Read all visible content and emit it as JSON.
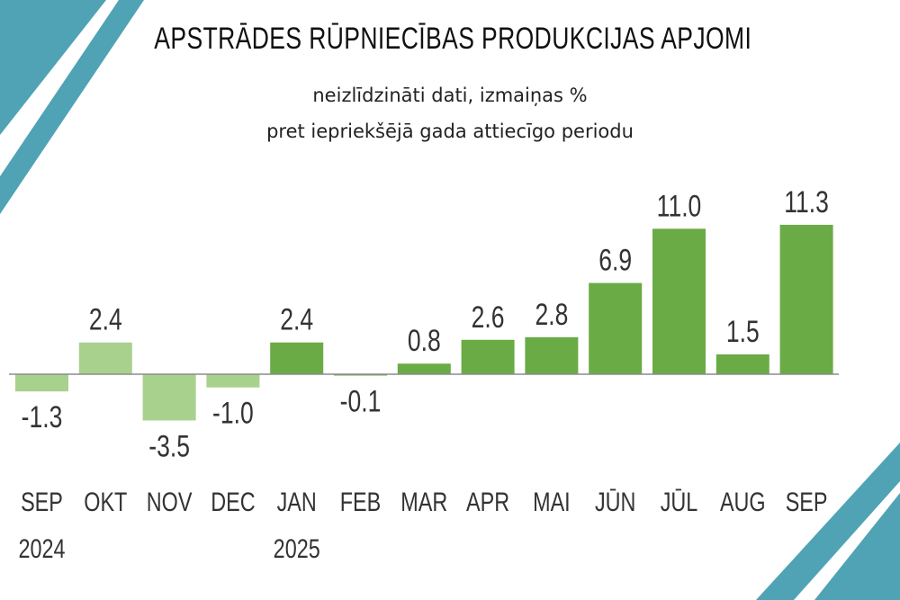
{
  "title": "APSTRĀDES RŪPNIECĪBAS PRODUKCIJAS APJOMI",
  "subtitle_line1": "neizlīdzināti dati, izmaiņas %",
  "subtitle_line2": "pret iepriekšējā gada attiecīgo periodu",
  "colors": {
    "bar_2024": "#a9d18e",
    "bar_2025": "#6aab46",
    "axis": "#8c8c8c",
    "accent": "#4fa3b5",
    "text": "#333333"
  },
  "chart_data": {
    "type": "bar",
    "title": "APSTRĀDES RŪPNIECĪBAS PRODUKCIJAS APJOMI",
    "categories": [
      "SEP",
      "OKT",
      "NOV",
      "DEC",
      "JAN",
      "FEB",
      "MAR",
      "APR",
      "MAI",
      "JŪN",
      "JŪL",
      "AUG",
      "SEP"
    ],
    "year_labels": [
      "2024",
      "",
      "",
      "",
      "2025",
      "",
      "",
      "",
      "",
      "",
      "",
      "",
      ""
    ],
    "values": [
      -1.3,
      2.4,
      -3.5,
      -1.0,
      2.4,
      -0.1,
      0.8,
      2.6,
      2.8,
      6.9,
      11.0,
      1.5,
      11.3
    ],
    "value_labels": [
      "-1.3",
      "2.4",
      "-3.5",
      "-1.0",
      "2.4",
      "-0.1",
      "0.8",
      "2.6",
      "2.8",
      "6.9",
      "11.0",
      "1.5",
      "11.3"
    ],
    "year_group": [
      2024,
      2024,
      2024,
      2024,
      2025,
      2025,
      2025,
      2025,
      2025,
      2025,
      2025,
      2025,
      2025
    ],
    "xlabel": "",
    "ylabel": "",
    "ylim": [
      -5,
      12
    ]
  }
}
